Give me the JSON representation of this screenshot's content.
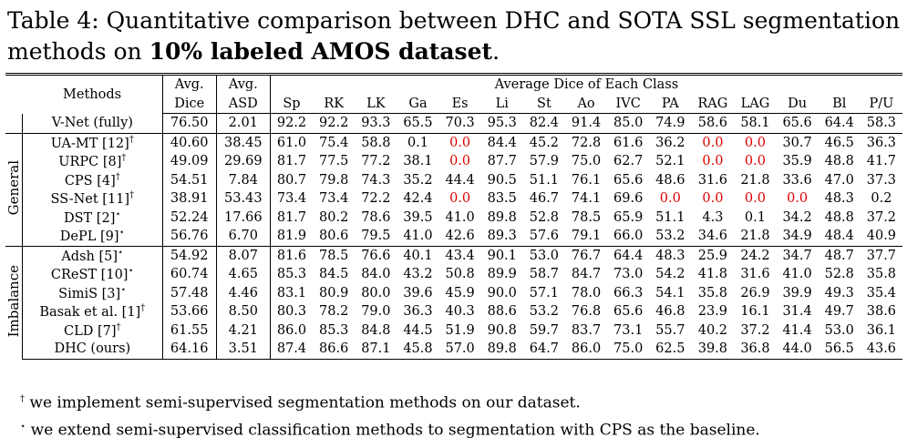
{
  "caption": {
    "prefix": "Table 4: Quantitative comparison between DHC and SOTA SSL segmentation methods on ",
    "bold": "10% labeled AMOS dataset",
    "suffix": "."
  },
  "table": {
    "header": {
      "methods": "Methods",
      "metrics": [
        {
          "lines": [
            "Avg.",
            "Dice"
          ],
          "best": "max"
        },
        {
          "lines": [
            "Avg.",
            "ASD"
          ],
          "best": "min"
        }
      ],
      "classes_title": "Average Dice of Each Class",
      "classes": [
        "Sp",
        "RK",
        "LK",
        "Ga",
        "Es",
        "Li",
        "St",
        "Ao",
        "IVC",
        "PA",
        "RAG",
        "LAG",
        "Du",
        "Bl",
        "P/U"
      ],
      "classes_best": "max"
    },
    "groups": [
      {
        "label": null,
        "reference": true,
        "rows": [
          {
            "name": "V-Net (fully)",
            "mark": null,
            "values": [
              "76.50",
              "2.01",
              "92.2",
              "92.2",
              "93.3",
              "65.5",
              "70.3",
              "95.3",
              "82.4",
              "91.4",
              "85.0",
              "74.9",
              "58.6",
              "58.1",
              "65.6",
              "64.4",
              "58.3"
            ]
          }
        ]
      },
      {
        "label": "General",
        "rows": [
          {
            "name": "UA-MT [12]",
            "mark": "†",
            "values": [
              "40.60",
              "38.45",
              "61.0",
              "75.4",
              "58.8",
              "0.1",
              "0.0",
              "84.4",
              "45.2",
              "72.8",
              "61.6",
              "36.2",
              "0.0",
              "0.0",
              "30.7",
              "46.5",
              "36.3"
            ]
          },
          {
            "name": "URPC [8]",
            "mark": "†",
            "values": [
              "49.09",
              "29.69",
              "81.7",
              "77.5",
              "77.2",
              "38.1",
              "0.0",
              "87.7",
              "57.9",
              "75.0",
              "62.7",
              "52.1",
              "0.0",
              "0.0",
              "35.9",
              "48.8",
              "41.7"
            ]
          },
          {
            "name": "CPS [4]",
            "mark": "†",
            "values": [
              "54.51",
              "7.84",
              "80.7",
              "79.8",
              "74.3",
              "35.2",
              "44.4",
              "90.5",
              "51.1",
              "76.1",
              "65.6",
              "48.6",
              "31.6",
              "21.8",
              "33.6",
              "47.0",
              "37.3"
            ]
          },
          {
            "name": "SS-Net [11]",
            "mark": "†",
            "values": [
              "38.91",
              "53.43",
              "73.4",
              "73.4",
              "72.2",
              "42.4",
              "0.0",
              "83.5",
              "46.7",
              "74.1",
              "69.6",
              "0.0",
              "0.0",
              "0.0",
              "0.0",
              "48.3",
              "0.2"
            ]
          },
          {
            "name": "DST [2]",
            "mark": "⋆",
            "values": [
              "52.24",
              "17.66",
              "81.7",
              "80.2",
              "78.6",
              "39.5",
              "41.0",
              "89.8",
              "52.8",
              "78.5",
              "65.9",
              "51.1",
              "4.3",
              "0.1",
              "34.2",
              "48.8",
              "37.2"
            ]
          },
          {
            "name": "DePL [9]",
            "mark": "⋆",
            "values": [
              "56.76",
              "6.70",
              "81.9",
              "80.6",
              "79.5",
              "41.0",
              "42.6",
              "89.3",
              "57.6",
              "79.1",
              "66.0",
              "53.2",
              "34.6",
              "21.8",
              "34.9",
              "48.4",
              "40.9"
            ]
          }
        ]
      },
      {
        "label": "Imbalance",
        "rows": [
          {
            "name": "Adsh [5]",
            "mark": "⋆",
            "values": [
              "54.92",
              "8.07",
              "81.6",
              "78.5",
              "76.6",
              "40.1",
              "43.4",
              "90.1",
              "53.0",
              "76.7",
              "64.4",
              "48.3",
              "25.9",
              "24.2",
              "34.7",
              "48.7",
              "37.7"
            ]
          },
          {
            "name": "CReST [10]",
            "mark": "⋆",
            "values": [
              "60.74",
              "4.65",
              "85.3",
              "84.5",
              "84.0",
              "43.2",
              "50.8",
              "89.9",
              "58.7",
              "84.7",
              "73.0",
              "54.2",
              "41.8",
              "31.6",
              "41.0",
              "52.8",
              "35.8"
            ]
          },
          {
            "name": "SimiS [3]",
            "mark": "⋆",
            "values": [
              "57.48",
              "4.46",
              "83.1",
              "80.9",
              "80.0",
              "39.6",
              "45.9",
              "90.0",
              "57.1",
              "78.0",
              "66.3",
              "54.1",
              "35.8",
              "26.9",
              "39.9",
              "49.3",
              "35.4"
            ]
          },
          {
            "name": "Basak et al. [1]",
            "mark": "†",
            "values": [
              "53.66",
              "8.50",
              "80.3",
              "78.2",
              "79.0",
              "36.3",
              "40.3",
              "88.6",
              "53.2",
              "76.8",
              "65.6",
              "46.8",
              "23.9",
              "16.1",
              "31.4",
              "49.7",
              "38.6"
            ]
          },
          {
            "name": "CLD [7]",
            "mark": "†",
            "values": [
              "61.55",
              "4.21",
              "86.0",
              "85.3",
              "84.8",
              "44.5",
              "51.9",
              "90.8",
              "59.7",
              "83.7",
              "73.1",
              "55.7",
              "40.2",
              "37.2",
              "41.4",
              "53.0",
              "36.1"
            ]
          },
          {
            "name": "DHC (ours)",
            "mark": null,
            "highlight": true,
            "values": [
              "64.16",
              "3.51",
              "87.4",
              "86.6",
              "87.1",
              "45.8",
              "57.0",
              "89.8",
              "64.7",
              "86.0",
              "75.0",
              "62.5",
              "39.8",
              "36.8",
              "44.0",
              "56.5",
              "43.6"
            ]
          }
        ]
      }
    ]
  },
  "footnotes": [
    {
      "mark": "†",
      "text": " we implement semi-supervised segmentation methods on our dataset."
    },
    {
      "mark": "⋆",
      "text": " we extend semi-supervised classification methods to segmentation with CPS as the baseline."
    }
  ]
}
